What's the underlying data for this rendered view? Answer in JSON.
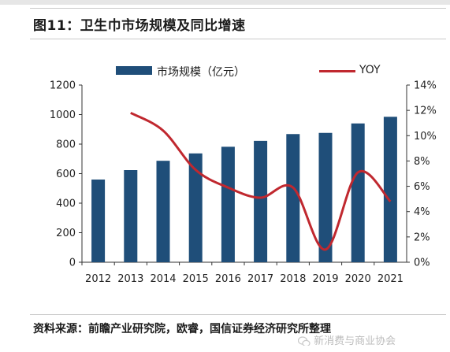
{
  "title": "图11：卫生巾市场规模及同比增速",
  "source": "资料来源：前瞻产业研究院，欧睿，国信证券经济研究所整理",
  "watermark": "新消费与商业协会",
  "watermark_icon": "wechat-icon",
  "colors": {
    "bar": "#1f4e79",
    "line": "#c0282f",
    "divider": "#c9c9c9"
  },
  "chart_data": {
    "type": "bar",
    "categories": [
      "2012",
      "2013",
      "2014",
      "2015",
      "2016",
      "2017",
      "2018",
      "2019",
      "2020",
      "2021"
    ],
    "series": [
      {
        "name": "市场规模（亿元）",
        "type": "bar",
        "axis": "left",
        "values": [
          560,
          624,
          687,
          737,
          782,
          822,
          868,
          876,
          940,
          985
        ]
      },
      {
        "name": "YOY",
        "type": "line",
        "axis": "right",
        "unit": "%",
        "values": [
          null,
          11.8,
          10.4,
          7.3,
          5.9,
          5.1,
          5.9,
          1.0,
          7.1,
          4.8
        ]
      }
    ],
    "y_left": {
      "ylim": [
        0,
        1200
      ],
      "ticks": [
        "0",
        "200",
        "400",
        "600",
        "800",
        "1000",
        "1200"
      ]
    },
    "y_right": {
      "ylim": [
        0,
        14
      ],
      "ticks": [
        "0%",
        "2%",
        "4%",
        "6%",
        "8%",
        "10%",
        "12%",
        "14%"
      ]
    },
    "legend_position": "top",
    "grid": false
  }
}
